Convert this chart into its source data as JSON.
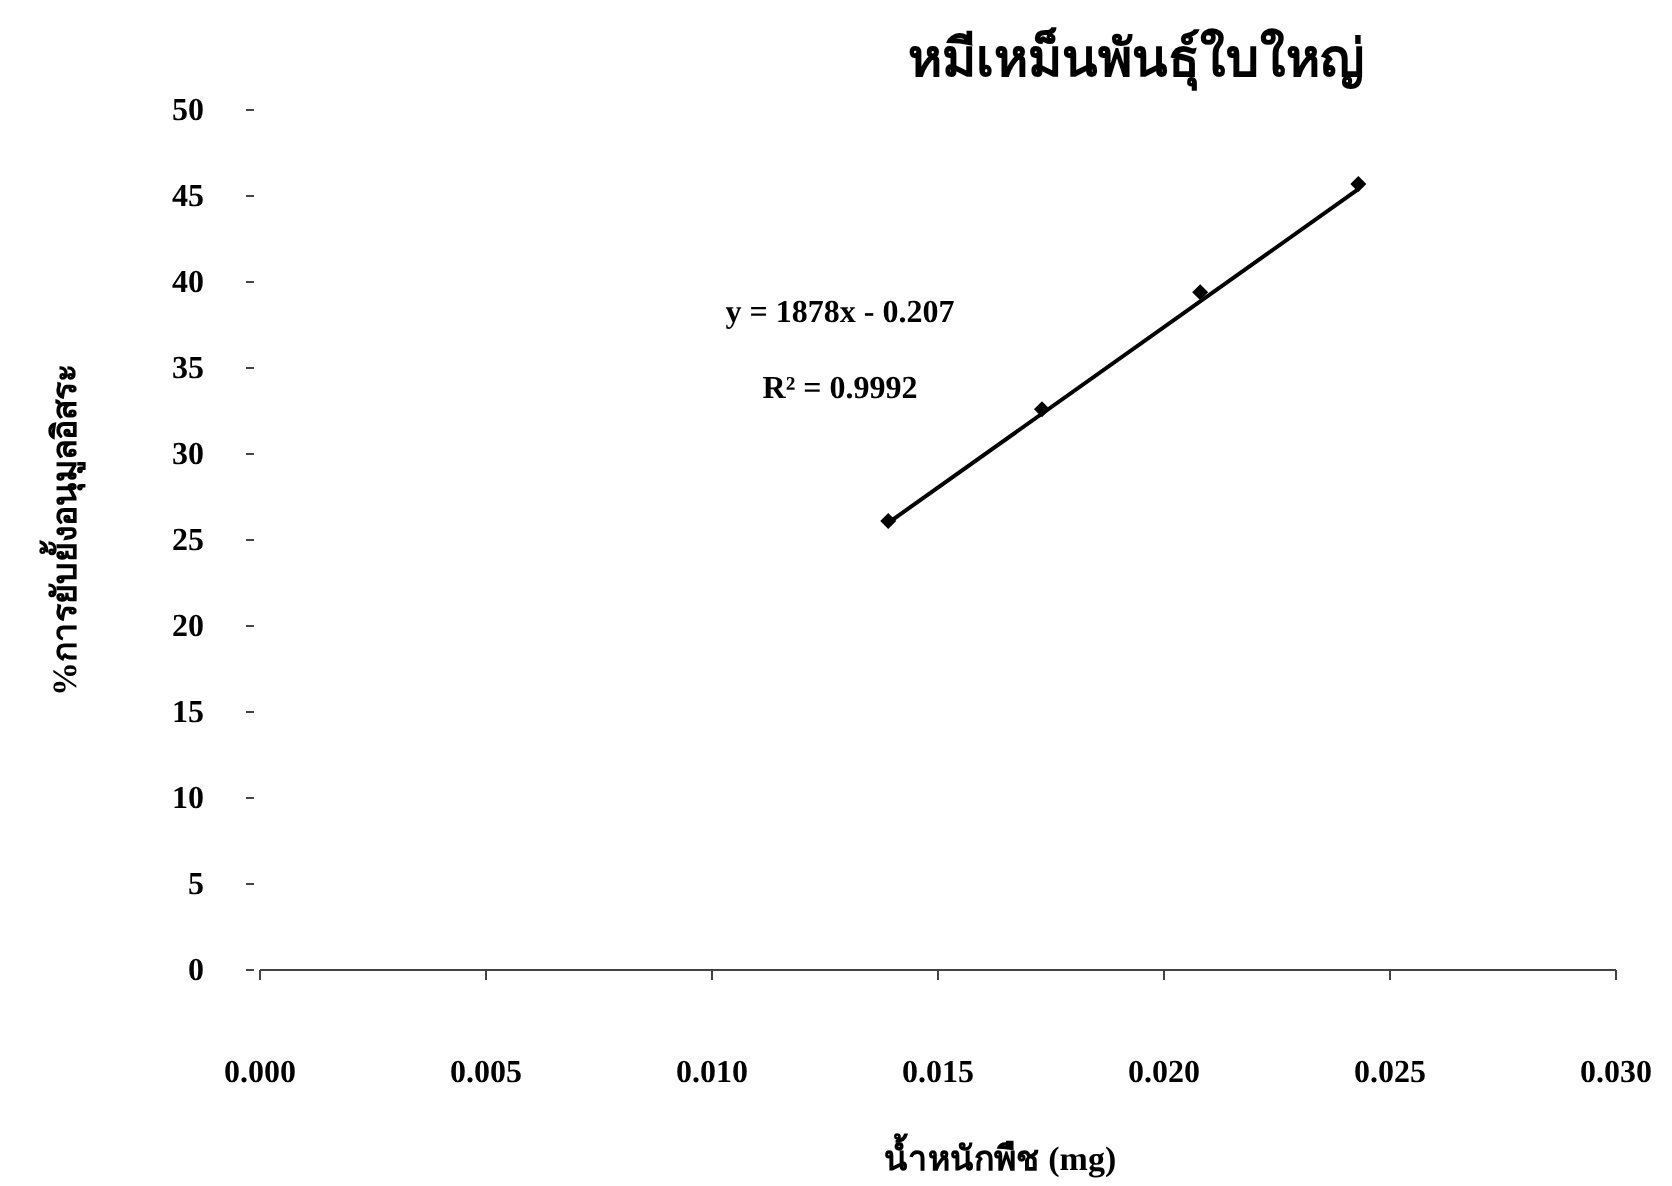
{
  "chart_data": {
    "type": "scatter",
    "title": "หมีเหม็นพันธุ์ใบใหญ่",
    "xlabel": "น้ำหนักพืช (mg)",
    "ylabel": "%การยับยั้งอนุมูลอิสระ",
    "annotations": [
      "y = 1878x - 0.207",
      "R² = 0.9992"
    ],
    "xlim": [
      0,
      0.03
    ],
    "xticks": [
      {
        "value": 0,
        "label": "0.000"
      },
      0.005,
      {
        "value": 0.01,
        "label": "0.010"
      },
      0.015,
      {
        "value": 0.02,
        "label": "0.020"
      },
      0.025,
      {
        "value": 0.03,
        "label": "0.030"
      }
    ],
    "ylim": [
      0,
      50
    ],
    "yticks": [
      0,
      5,
      10,
      15,
      20,
      25,
      30,
      35,
      40,
      45,
      50
    ],
    "series": [
      {
        "color": "#000000",
        "marker": "diamond",
        "x": [
          0.0139,
          0.0173,
          0.0208,
          0.0243
        ],
        "values": [
          26.1,
          32.6,
          39.4,
          45.7
        ]
      },
      {
        "type": "line",
        "color": "#000000",
        "line_style": "solid",
        "x": [
          0.0139,
          0.0243
        ],
        "values": [
          26.0,
          45.4
        ]
      }
    ]
  }
}
